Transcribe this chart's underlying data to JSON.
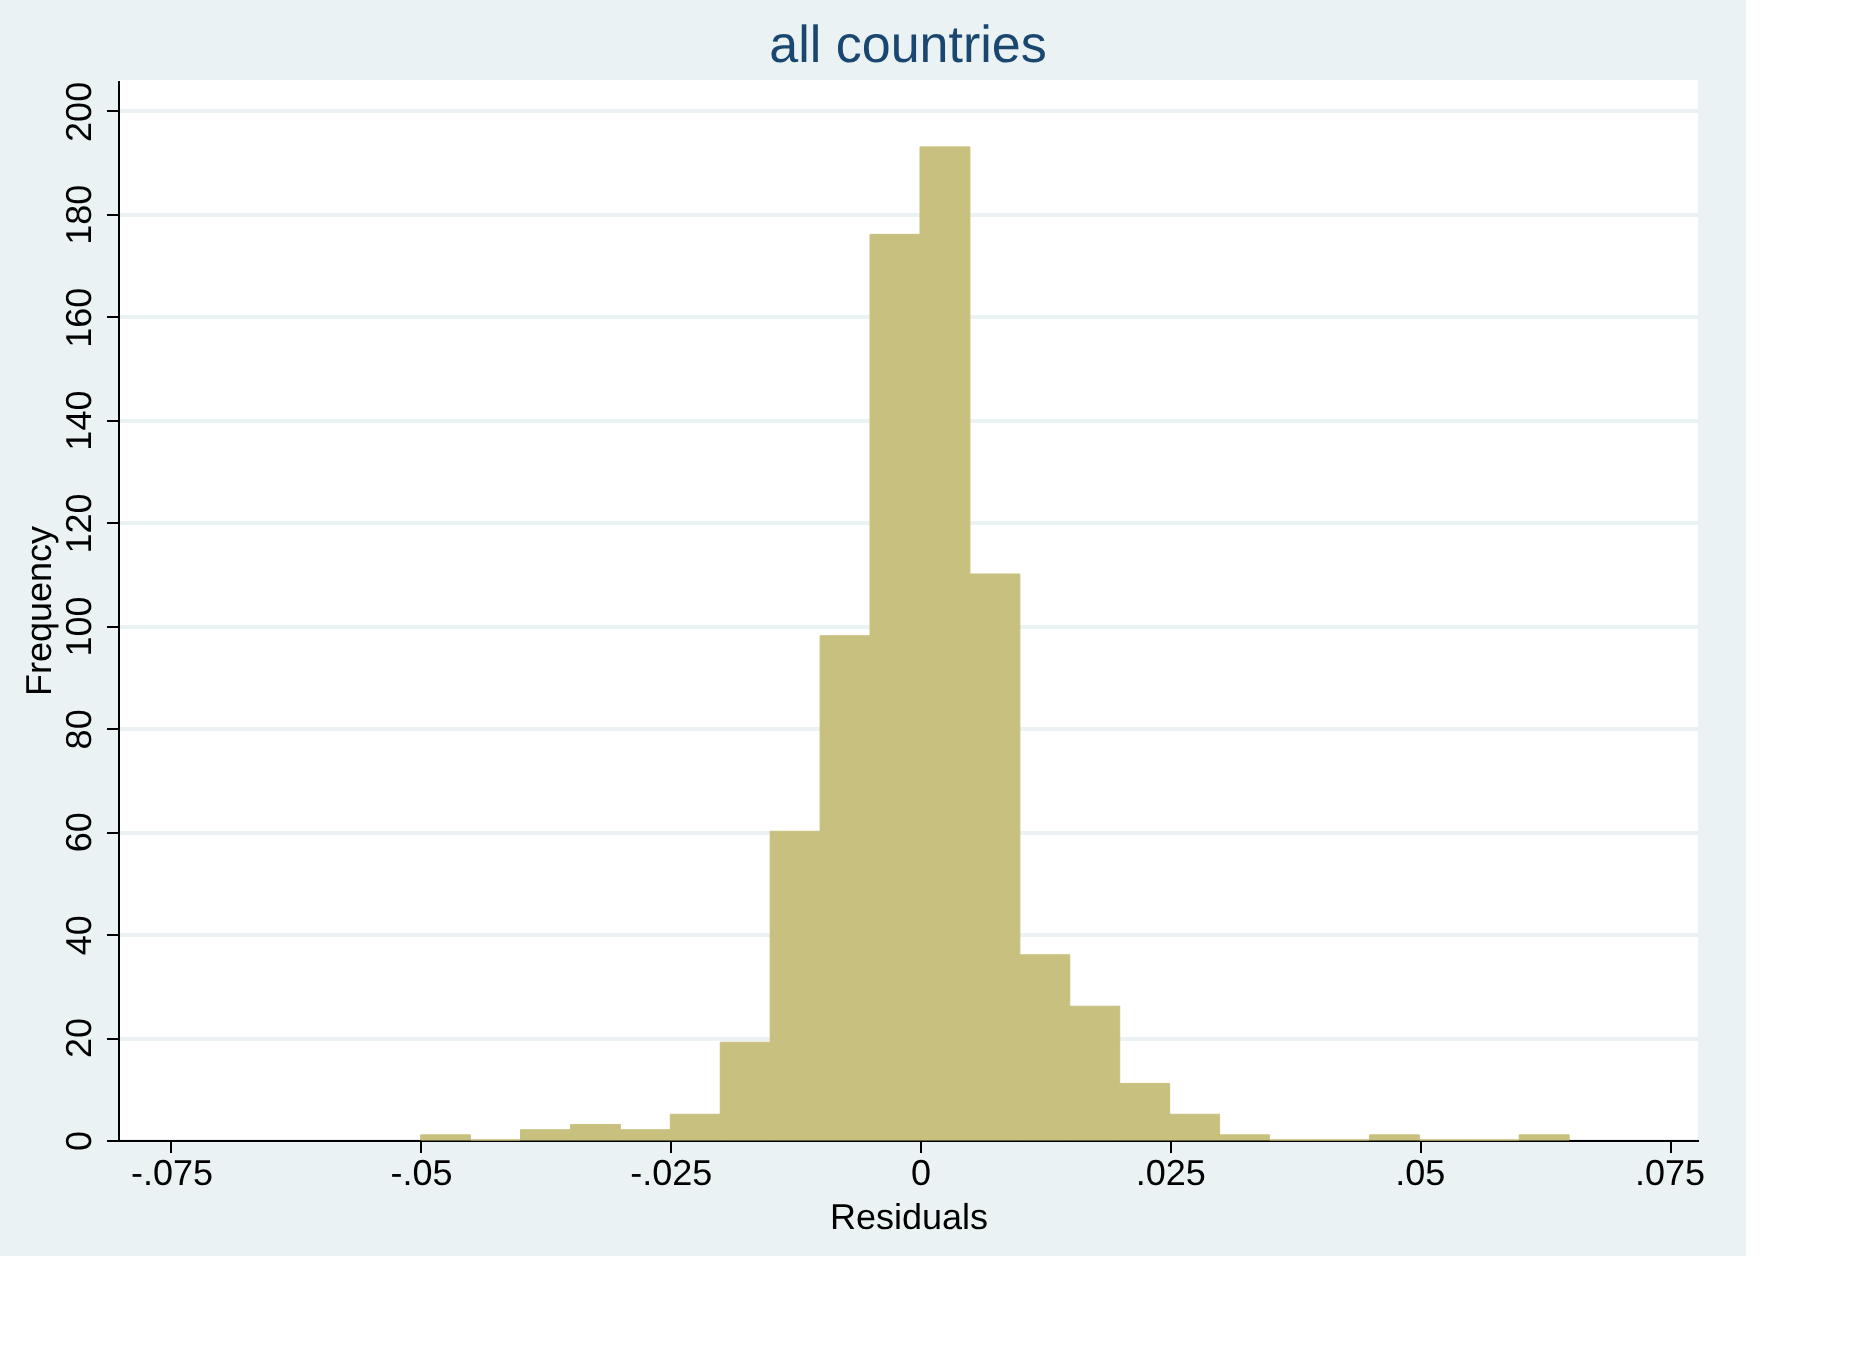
{
  "chart_data": {
    "type": "histogram",
    "title": "all countries",
    "xlabel": "Residuals",
    "ylabel": "Frequency",
    "bins": [
      -0.05,
      -0.045,
      -0.04,
      -0.035,
      -0.03,
      -0.025,
      -0.02,
      -0.015,
      -0.01,
      -0.005,
      0,
      0.005,
      0.01,
      0.015,
      0.02,
      0.025,
      0.03,
      0.035,
      0.04,
      0.045,
      0.05,
      0.055,
      0.06,
      0.065
    ],
    "values": [
      1,
      0,
      2,
      3,
      2,
      5,
      19,
      60,
      98,
      176,
      193,
      110,
      36,
      26,
      11,
      5,
      1,
      0,
      0,
      1,
      0,
      0,
      1
    ],
    "color": "#c8c07e",
    "xlim": [
      -0.0803,
      0.0779
    ],
    "xticks": [
      {
        "value": -0.075,
        "label": "-.075"
      },
      {
        "value": -0.05,
        "label": "-.05"
      },
      {
        "value": -0.025,
        "label": "-.025"
      },
      0,
      {
        "value": 0.025,
        "label": ".025"
      },
      {
        "value": 0.05,
        "label": ".05"
      },
      {
        "value": 0.075,
        "label": ".075"
      }
    ],
    "ylim": [
      0,
      206
    ],
    "yticks": [
      0,
      20,
      40,
      60,
      80,
      100,
      120,
      140,
      160,
      180,
      200
    ],
    "grid": "y"
  }
}
